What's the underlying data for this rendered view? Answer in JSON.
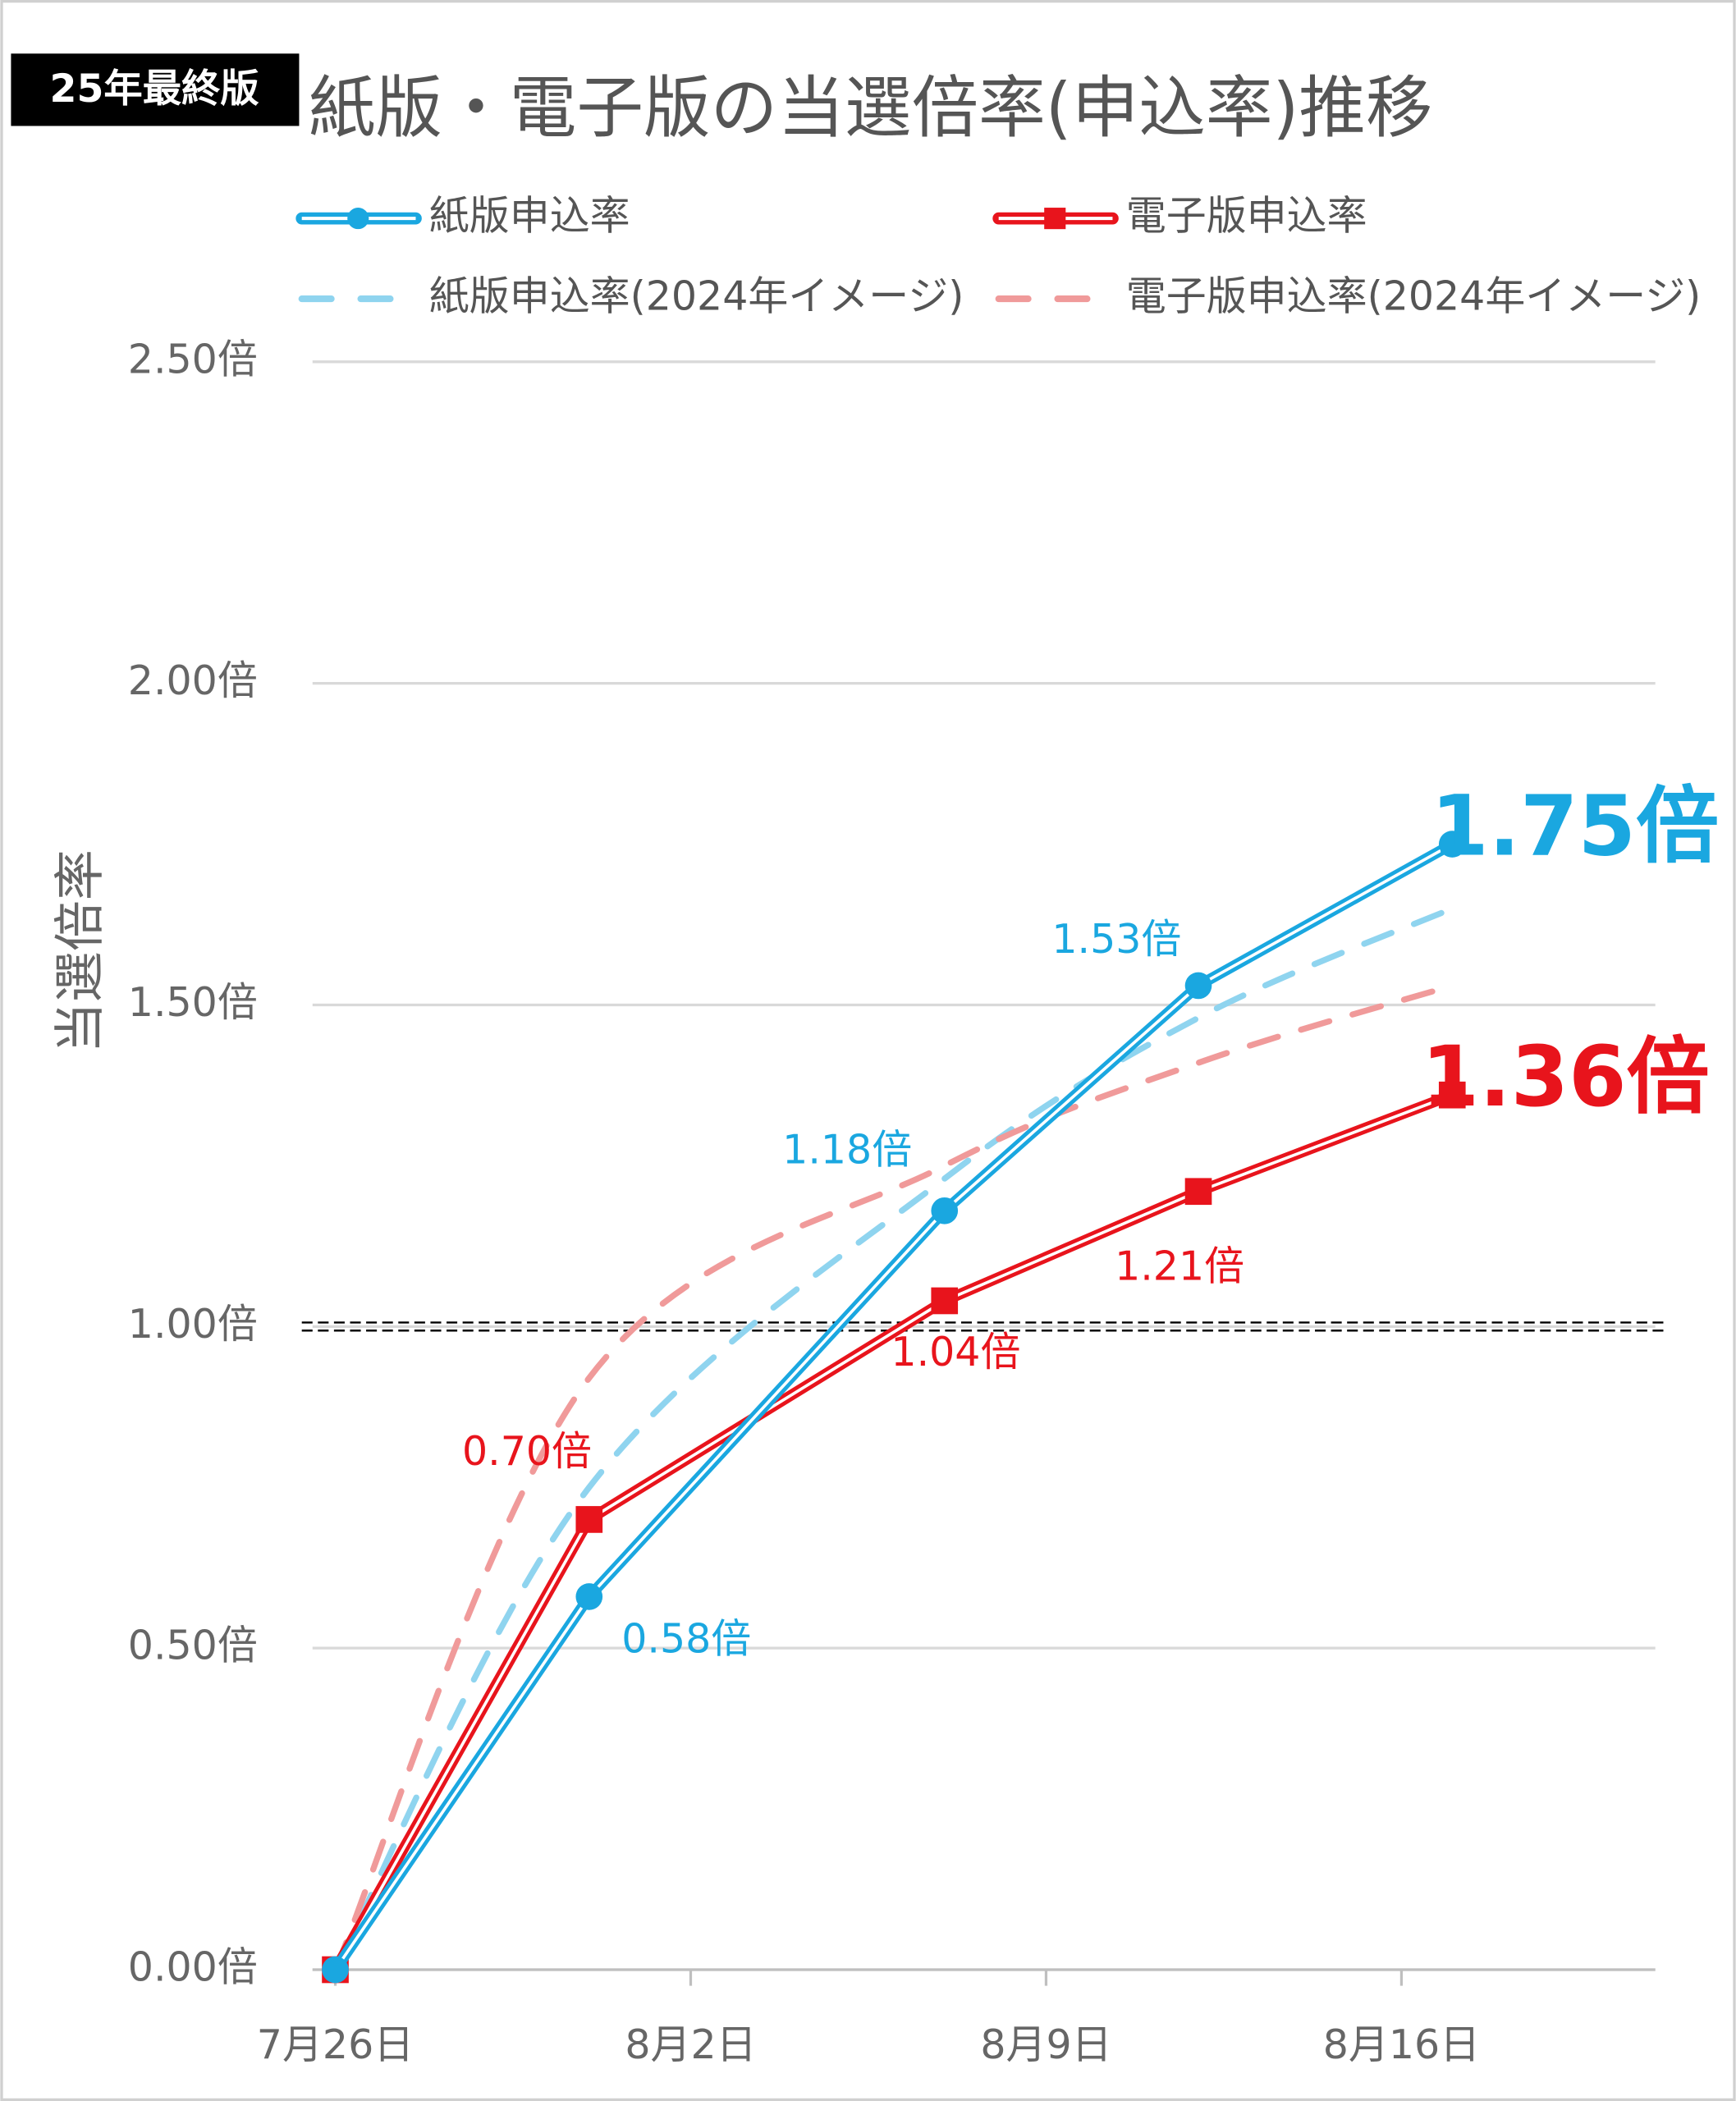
{
  "badge": "25年最終版",
  "chart_data": {
    "type": "line",
    "title": "紙版・電子版の当選倍率(申込率)推移",
    "y_label": "当選倍率",
    "x": [
      "7月26日",
      "7月31日",
      "8月7日",
      "8月12日",
      "8月17日"
    ],
    "xlim": [
      "7月26日",
      "8月21日"
    ],
    "xticks": [
      "7月26日",
      "8月2日",
      "8月9日",
      "8月16日"
    ],
    "ylim": [
      0,
      2.5
    ],
    "yticks": [
      {
        "value": 0,
        "label": "0.00倍"
      },
      {
        "value": 0.5,
        "label": "0.50倍"
      },
      {
        "value": 1,
        "label": "1.00倍"
      },
      {
        "value": 1.5,
        "label": "1.50倍"
      },
      {
        "value": 2,
        "label": "2.00倍"
      },
      {
        "value": 2.5,
        "label": "2.50倍"
      }
    ],
    "grid": true,
    "reference_line": 1,
    "series": [
      {
        "name": "紙版申込率",
        "color": "#1aa7e0",
        "marker": "circle",
        "style": "double",
        "values": [
          0,
          0.58,
          1.18,
          1.53,
          1.75
        ],
        "value_labels": [
          null,
          "0.58倍",
          "1.18倍",
          "1.53倍",
          "1.75倍"
        ]
      },
      {
        "name": "電子版申込率",
        "color": "#e8141c",
        "marker": "square",
        "style": "double",
        "values": [
          0,
          0.7,
          1.04,
          1.21,
          1.36
        ],
        "value_labels": [
          null,
          "0.70倍",
          "1.04倍",
          "1.21倍",
          "1.36倍"
        ]
      },
      {
        "name": "紙版申込率(2024年イメージ)",
        "color": "#8fd4ef",
        "marker": "none",
        "style": "dashed",
        "values": [
          0,
          0.75,
          1.23,
          1.48,
          1.65
        ]
      },
      {
        "name": "電子版申込率(2024年イメージ)",
        "color": "#f09a9a",
        "marker": "none",
        "style": "dashed",
        "values": [
          0,
          0.92,
          1.25,
          1.41,
          1.53
        ]
      }
    ]
  }
}
